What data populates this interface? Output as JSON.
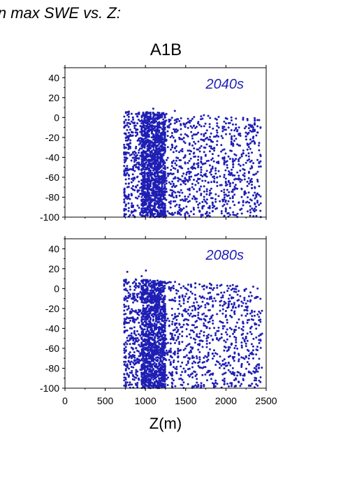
{
  "header": {
    "title": "in max SWE vs. Z:",
    "scenario": "A1B"
  },
  "colors": {
    "points": "#1f1fb5",
    "panel_label": "#1f1fb5",
    "axis": "#000000"
  },
  "chart_data": [
    {
      "type": "scatter",
      "panel_label": "2040s",
      "xlim": [
        0,
        2500
      ],
      "ylim": [
        -100,
        50
      ],
      "xticks": [
        0,
        500,
        1000,
        1500,
        2000,
        2500
      ],
      "yticks": [
        40,
        20,
        0,
        -20,
        -40,
        -60,
        -80,
        -100
      ],
      "xlabel": "",
      "ylabel": "",
      "point_summary": {
        "z_min": 730,
        "z_max": 2440,
        "dense_z_range": [
          950,
          1250
        ],
        "y_min": -100,
        "y_max_typical": 7,
        "y_max_outlier": 12
      }
    },
    {
      "type": "scatter",
      "panel_label": "2080s",
      "xlim": [
        0,
        2500
      ],
      "ylim": [
        -100,
        50
      ],
      "xticks": [
        0,
        500,
        1000,
        1500,
        2000,
        2500
      ],
      "yticks": [
        40,
        20,
        0,
        -20,
        -40,
        -60,
        -80,
        -100
      ],
      "xlabel": "Z(m)",
      "xtick_labels": [
        "0",
        "500",
        "1000",
        "1500",
        "2000",
        "2500"
      ],
      "ylabel": "",
      "point_summary": {
        "z_min": 730,
        "z_max": 2440,
        "dense_z_range": [
          950,
          1250
        ],
        "y_min": -100,
        "y_max_typical": 10,
        "y_max_outlier": 20
      }
    }
  ]
}
